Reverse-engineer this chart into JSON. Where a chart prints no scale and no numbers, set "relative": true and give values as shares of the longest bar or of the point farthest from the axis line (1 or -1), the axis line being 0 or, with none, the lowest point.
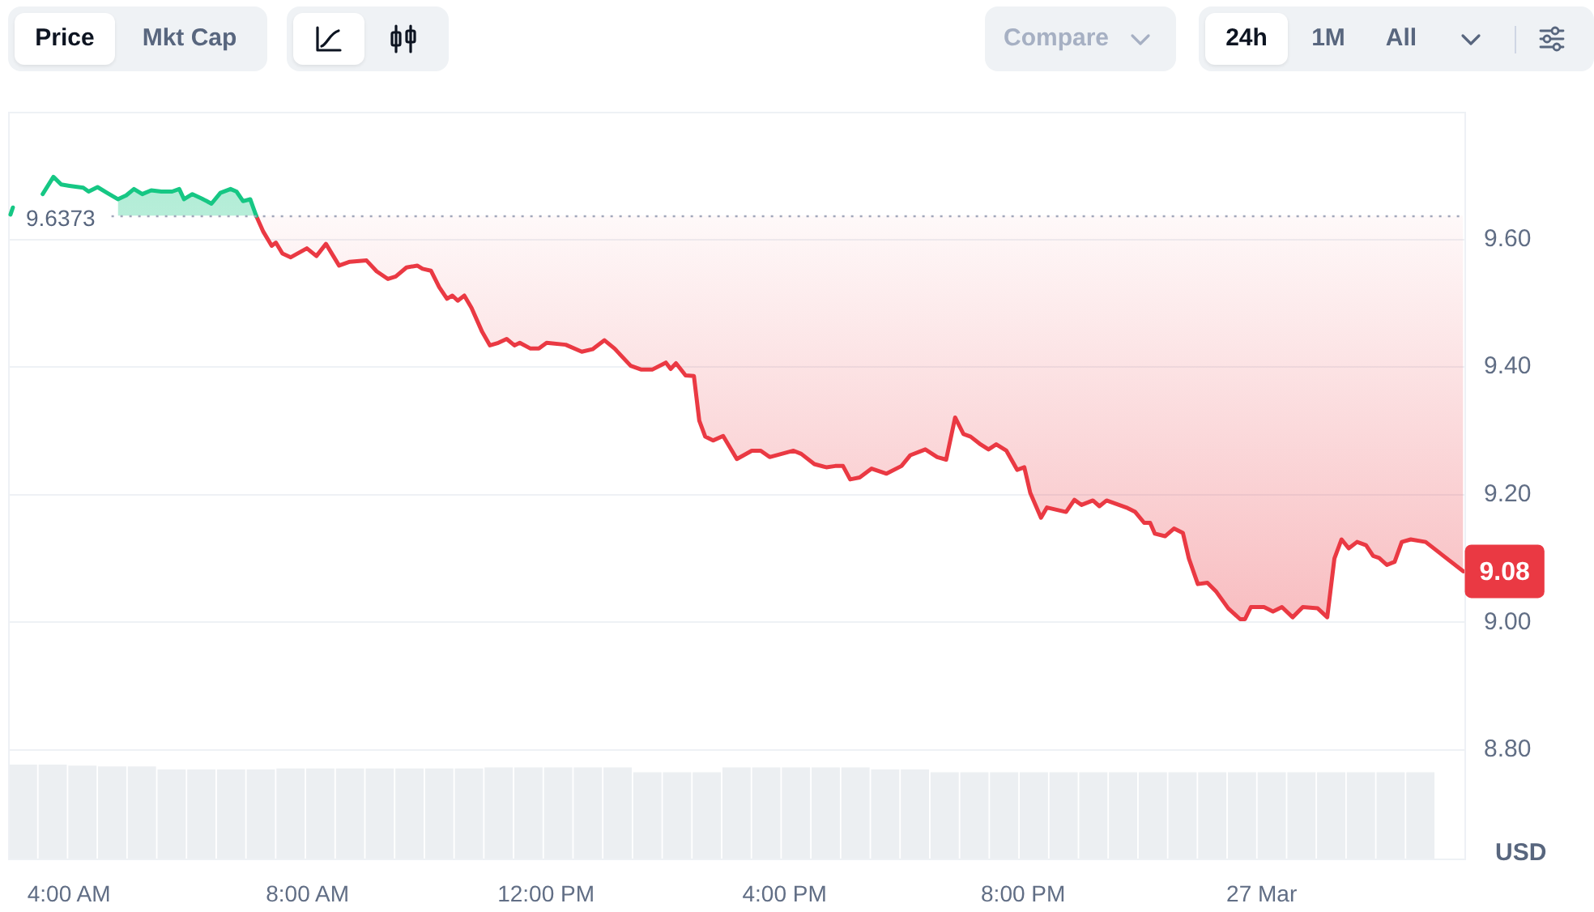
{
  "chart_data": [
    {
      "type": "line",
      "ylabel": "USD",
      "marker": "none",
      "grid": "y",
      "xlim": [
        2.98,
        27.4
      ],
      "xticks": [
        {
          "value": 4,
          "label": "4:00 AM"
        },
        {
          "value": 8,
          "label": "8:00 AM"
        },
        {
          "value": 12,
          "label": "12:00 PM"
        },
        {
          "value": 16,
          "label": "4:00 PM"
        },
        {
          "value": 20,
          "label": "8:00 PM"
        },
        {
          "value": 24,
          "label": "27 Mar"
        }
      ],
      "ylim": [
        8.63,
        9.8
      ],
      "yticks": [
        {
          "value": 8.8,
          "label": "8.80"
        },
        {
          "value": 9,
          "label": "9.00"
        },
        {
          "value": 9.2,
          "label": "9.20"
        },
        {
          "value": 9.4,
          "label": "9.40"
        },
        {
          "value": 9.6,
          "label": "9.60"
        }
      ],
      "ref_lines": [
        {
          "axis": "y",
          "value": 9.6373,
          "label": "9.6373",
          "color": "#a1a7bb",
          "line_style": "dotted"
        }
      ],
      "annotations": [
        "Price",
        "Mkt Cap",
        "Compare",
        "24h",
        "1M",
        "All",
        {
          "text": "9.08",
          "x": 27.38,
          "y": 9.08
        }
      ],
      "series": [
        {
          "color": "#16c784",
          "x": [
            3.02,
            3.06,
            3.3,
            3.56,
            3.74,
            3.87,
            4.01,
            4.24,
            4.33,
            4.48,
            4.64,
            4.82,
            4.96,
            5.09,
            5.23,
            5.38,
            5.55,
            5.73,
            5.85,
            5.93,
            6.07,
            6.23,
            6.39,
            6.54,
            6.71,
            6.81,
            6.92,
            7.04,
            7.14
          ],
          "values": [
            9.639,
            9.65,
            null,
            9.671,
            9.698,
            9.686,
            9.684,
            9.681,
            9.675,
            9.682,
            9.673,
            9.663,
            9.669,
            9.679,
            9.671,
            9.677,
            9.675,
            9.675,
            9.679,
            9.663,
            9.671,
            9.664,
            9.656,
            9.673,
            9.679,
            9.675,
            9.66,
            9.663,
            9.637
          ],
          "upper": [
            null,
            null,
            null,
            null,
            null,
            null,
            null,
            null,
            null,
            null,
            null,
            9.663,
            9.669,
            9.679,
            9.671,
            9.677,
            9.675,
            9.675,
            9.679,
            9.663,
            9.671,
            9.664,
            9.656,
            9.673,
            9.679,
            9.675,
            9.66,
            9.663,
            9.637
          ],
          "lower": [
            null,
            null,
            null,
            null,
            null,
            null,
            null,
            null,
            null,
            null,
            null,
            9.6373,
            9.6373,
            9.6373,
            9.6373,
            9.6373,
            9.6373,
            9.6373,
            9.6373,
            9.6373,
            9.6373,
            9.6373,
            9.6373,
            9.6373,
            9.6373,
            9.6373,
            9.6373,
            9.6373,
            9.6373
          ]
        },
        {
          "color": "#ea3943",
          "x": [
            7.14,
            7.26,
            7.4,
            7.47,
            7.58,
            7.72,
            7.99,
            8.15,
            8.31,
            8.53,
            8.71,
            8.99,
            9.16,
            9.35,
            9.48,
            9.66,
            9.84,
            9.93,
            10.07,
            10.21,
            10.34,
            10.43,
            10.52,
            10.63,
            10.75,
            10.93,
            11.06,
            11.2,
            11.34,
            11.47,
            11.56,
            11.74,
            11.88,
            12.01,
            12.33,
            12.6,
            12.78,
            12.98,
            13.15,
            13.42,
            13.6,
            13.78,
            14.01,
            14.09,
            14.18,
            14.34,
            14.48,
            14.57,
            14.67,
            14.8,
            14.97,
            15.2,
            15.45,
            15.6,
            15.75,
            16.15,
            16.28,
            16.5,
            16.7,
            16.85,
            16.98,
            17.1,
            17.26,
            17.46,
            17.71,
            17.96,
            18.11,
            18.36,
            18.56,
            18.71,
            18.86,
            19,
            19.12,
            19.27,
            19.42,
            19.55,
            19.72,
            19.9,
            20.02,
            20.12,
            20.3,
            20.4,
            20.72,
            20.86,
            20.98,
            21.17,
            21.28,
            21.4,
            21.73,
            21.88,
            22.03,
            22.13,
            22.21,
            22.38,
            22.53,
            22.68,
            22.78,
            22.93,
            23.09,
            23.24,
            23.44,
            23.64,
            23.72,
            23.82,
            24.04,
            24.19,
            24.34,
            24.52,
            24.69,
            24.94,
            25.1,
            25.22,
            25.34,
            25.46,
            25.6,
            25.75,
            25.87,
            25.97,
            26.1,
            26.23,
            26.35,
            26.5,
            26.75,
            27.38
          ],
          "values": [
            9.637,
            9.612,
            9.59,
            9.595,
            9.578,
            9.572,
            9.586,
            9.574,
            9.593,
            9.559,
            9.565,
            9.567,
            9.55,
            9.538,
            9.542,
            9.556,
            9.559,
            9.554,
            9.551,
            9.525,
            9.507,
            9.512,
            9.504,
            9.512,
            9.493,
            9.455,
            9.434,
            9.438,
            9.444,
            9.434,
            9.438,
            9.429,
            9.429,
            9.438,
            9.435,
            9.424,
            9.428,
            9.442,
            9.429,
            9.402,
            9.396,
            9.396,
            9.407,
            9.397,
            9.406,
            9.387,
            9.386,
            9.316,
            9.291,
            9.285,
            9.292,
            9.256,
            9.269,
            9.269,
            9.259,
            9.269,
            9.264,
            9.248,
            9.243,
            9.245,
            9.245,
            9.224,
            9.227,
            9.241,
            9.233,
            9.245,
            9.262,
            9.271,
            9.259,
            9.255,
            9.321,
            9.295,
            9.291,
            9.28,
            9.271,
            9.279,
            9.269,
            9.239,
            9.243,
            9.203,
            9.164,
            9.18,
            9.173,
            9.192,
            9.184,
            9.191,
            9.182,
            9.191,
            9.18,
            9.173,
            9.156,
            9.156,
            9.139,
            9.135,
            9.147,
            9.14,
            9.1,
            9.06,
            9.062,
            9.048,
            9.022,
            9.005,
            9.005,
            9.024,
            9.024,
            9.017,
            9.024,
            9.008,
            9.024,
            9.022,
            9.008,
            9.1,
            9.13,
            9.116,
            9.126,
            9.121,
            9.104,
            9.101,
            9.09,
            9.095,
            9.126,
            9.13,
            9.126,
            9.08
          ],
          "lower": [
            9.637,
            9.612,
            9.59,
            9.595,
            9.578,
            9.572,
            9.586,
            9.574,
            9.593,
            9.559,
            9.565,
            9.567,
            9.55,
            9.538,
            9.542,
            9.556,
            9.559,
            9.554,
            9.551,
            9.525,
            9.507,
            9.512,
            9.504,
            9.512,
            9.493,
            9.455,
            9.434,
            9.438,
            9.444,
            9.434,
            9.438,
            9.429,
            9.429,
            9.438,
            9.435,
            9.424,
            9.428,
            9.442,
            9.429,
            9.402,
            9.396,
            9.396,
            9.407,
            9.397,
            9.406,
            9.387,
            9.386,
            9.316,
            9.291,
            9.285,
            9.292,
            9.256,
            9.269,
            9.269,
            9.259,
            9.269,
            9.264,
            9.248,
            9.243,
            9.245,
            9.245,
            9.224,
            9.227,
            9.241,
            9.233,
            9.245,
            9.262,
            9.271,
            9.259,
            9.255,
            9.321,
            9.295,
            9.291,
            9.28,
            9.271,
            9.279,
            9.269,
            9.239,
            9.243,
            9.203,
            9.164,
            9.18,
            9.173,
            9.192,
            9.184,
            9.191,
            9.182,
            9.191,
            9.18,
            9.173,
            9.156,
            9.156,
            9.139,
            9.135,
            9.147,
            9.14,
            9.1,
            9.06,
            9.062,
            9.048,
            9.022,
            9.005,
            9.005,
            9.024,
            9.024,
            9.017,
            9.024,
            9.008,
            9.024,
            9.022,
            9.008,
            9.1,
            9.13,
            9.116,
            9.126,
            9.121,
            9.104,
            9.101,
            9.09,
            9.095,
            9.126,
            9.13,
            9.126,
            9.08
          ],
          "upper": [
            9.6373,
            9.6373,
            9.6373,
            9.6373,
            9.6373,
            9.6373,
            9.6373,
            9.6373,
            9.6373,
            9.6373,
            9.6373,
            9.6373,
            9.6373,
            9.6373,
            9.6373,
            9.6373,
            9.6373,
            9.6373,
            9.6373,
            9.6373,
            9.6373,
            9.6373,
            9.6373,
            9.6373,
            9.6373,
            9.6373,
            9.6373,
            9.6373,
            9.6373,
            9.6373,
            9.6373,
            9.6373,
            9.6373,
            9.6373,
            9.6373,
            9.6373,
            9.6373,
            9.6373,
            9.6373,
            9.6373,
            9.6373,
            9.6373,
            9.6373,
            9.6373,
            9.6373,
            9.6373,
            9.6373,
            9.6373,
            9.6373,
            9.6373,
            9.6373,
            9.6373,
            9.6373,
            9.6373,
            9.6373,
            9.6373,
            9.6373,
            9.6373,
            9.6373,
            9.6373,
            9.6373,
            9.6373,
            9.6373,
            9.6373,
            9.6373,
            9.6373,
            9.6373,
            9.6373,
            9.6373,
            9.6373,
            9.6373,
            9.6373,
            9.6373,
            9.6373,
            9.6373,
            9.6373,
            9.6373,
            9.6373,
            9.6373,
            9.6373,
            9.6373,
            9.6373,
            9.6373,
            9.6373,
            9.6373,
            9.6373,
            9.6373,
            9.6373,
            9.6373,
            9.6373,
            9.6373,
            9.6373,
            9.6373,
            9.6373,
            9.6373,
            9.6373,
            9.6373,
            9.6373,
            9.6373,
            9.6373,
            9.6373,
            9.6373,
            9.6373,
            9.6373,
            9.6373,
            9.6373,
            9.6373,
            9.6373,
            9.6373,
            9.6373,
            9.6373,
            9.6373,
            9.6373,
            9.6373,
            9.6373,
            9.6373,
            9.6373,
            9.6373,
            9.6373,
            9.6373,
            9.6373,
            9.6373,
            9.6373,
            9.6373
          ]
        }
      ]
    },
    {
      "type": "bar",
      "relative": true,
      "color": "#eceff2",
      "categories": [
        null,
        null,
        null,
        null,
        null,
        null,
        null,
        null,
        null,
        null,
        null,
        null,
        null,
        null,
        null,
        null,
        null,
        null,
        null,
        null,
        null,
        null,
        null,
        null,
        null,
        null,
        null,
        null,
        null,
        null,
        null,
        null,
        null,
        null,
        null,
        null,
        null,
        null,
        null,
        null,
        null,
        null,
        null,
        null,
        null,
        null,
        null,
        null
      ],
      "values": [
        1,
        1,
        0.99,
        0.98,
        0.98,
        0.95,
        0.95,
        0.95,
        0.95,
        0.96,
        0.96,
        0.96,
        0.96,
        0.96,
        0.96,
        0.96,
        0.97,
        0.97,
        0.97,
        0.97,
        0.97,
        0.92,
        0.92,
        0.92,
        0.97,
        0.97,
        0.97,
        0.97,
        0.97,
        0.95,
        0.95,
        0.92,
        0.92,
        0.92,
        0.92,
        0.92,
        0.92,
        0.92,
        0.92,
        0.92,
        0.92,
        0.92,
        0.92,
        0.92,
        0.92,
        0.92,
        0.92,
        0.92
      ]
    }
  ]
}
